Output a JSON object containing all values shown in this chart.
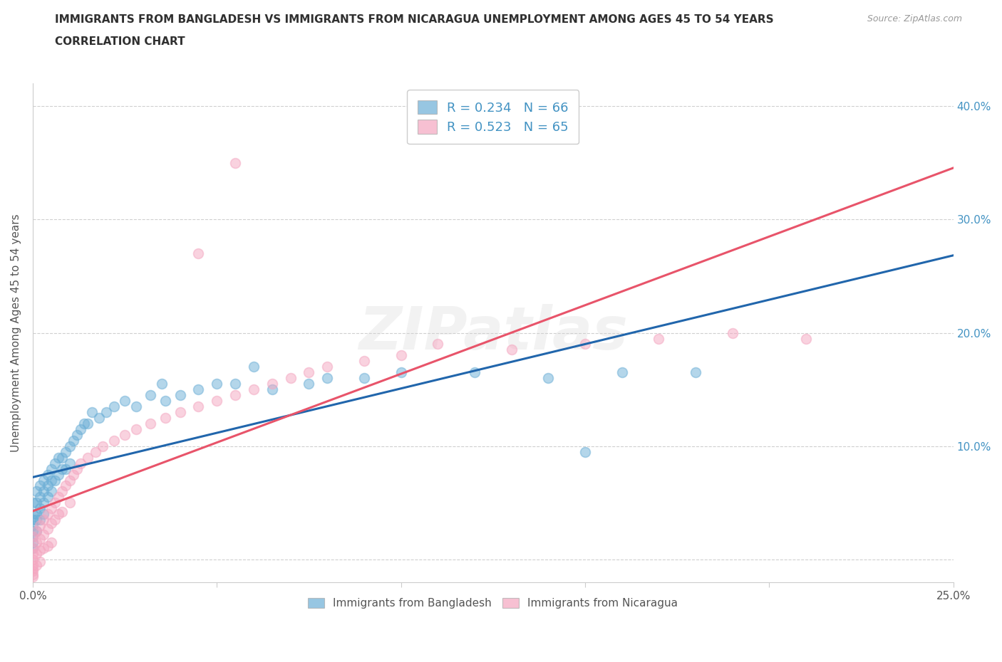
{
  "title_line1": "IMMIGRANTS FROM BANGLADESH VS IMMIGRANTS FROM NICARAGUA UNEMPLOYMENT AMONG AGES 45 TO 54 YEARS",
  "title_line2": "CORRELATION CHART",
  "source_text": "Source: ZipAtlas.com",
  "watermark": "ZIPatlas",
  "ylabel": "Unemployment Among Ages 45 to 54 years",
  "xlim": [
    0.0,
    0.25
  ],
  "ylim": [
    -0.02,
    0.42
  ],
  "xtick_positions": [
    0.0,
    0.05,
    0.1,
    0.15,
    0.2,
    0.25
  ],
  "xtick_labels": [
    "0.0%",
    "",
    "",
    "",
    "",
    "25.0%"
  ],
  "ytick_positions": [
    0.0,
    0.1,
    0.2,
    0.3,
    0.4
  ],
  "ytick_labels": [
    "",
    "10.0%",
    "20.0%",
    "30.0%",
    "40.0%"
  ],
  "legend_labels": [
    "Immigrants from Bangladesh",
    "Immigrants from Nicaragua"
  ],
  "R_bangladesh": 0.234,
  "N_bangladesh": 66,
  "R_nicaragua": 0.523,
  "N_nicaragua": 65,
  "blue_color": "#6baed6",
  "pink_color": "#f4a6c0",
  "blue_line_color": "#2166ac",
  "pink_line_color": "#e8546a",
  "title_color": "#303030",
  "grid_color": "#d0d0d0",
  "axis_color": "#cccccc",
  "rn_label_color": "#4393c3",
  "tick_label_color": "#555555",
  "bangladesh_x": [
    0.0,
    0.0,
    0.0,
    0.0,
    0.0,
    0.0,
    0.0,
    0.0,
    0.001,
    0.001,
    0.001,
    0.001,
    0.001,
    0.002,
    0.002,
    0.002,
    0.002,
    0.003,
    0.003,
    0.003,
    0.003,
    0.004,
    0.004,
    0.004,
    0.005,
    0.005,
    0.005,
    0.006,
    0.006,
    0.007,
    0.007,
    0.008,
    0.008,
    0.009,
    0.009,
    0.01,
    0.01,
    0.011,
    0.012,
    0.013,
    0.014,
    0.015,
    0.016,
    0.018,
    0.02,
    0.022,
    0.025,
    0.028,
    0.032,
    0.036,
    0.04,
    0.045,
    0.05,
    0.055,
    0.065,
    0.075,
    0.09,
    0.1,
    0.12,
    0.14,
    0.16,
    0.18,
    0.15,
    0.08,
    0.06,
    0.035
  ],
  "bangladesh_y": [
    0.05,
    0.04,
    0.035,
    0.03,
    0.025,
    0.02,
    0.015,
    0.01,
    0.06,
    0.05,
    0.04,
    0.035,
    0.025,
    0.065,
    0.055,
    0.045,
    0.035,
    0.07,
    0.06,
    0.05,
    0.04,
    0.075,
    0.065,
    0.055,
    0.08,
    0.07,
    0.06,
    0.085,
    0.07,
    0.09,
    0.075,
    0.09,
    0.08,
    0.095,
    0.08,
    0.1,
    0.085,
    0.105,
    0.11,
    0.115,
    0.12,
    0.12,
    0.13,
    0.125,
    0.13,
    0.135,
    0.14,
    0.135,
    0.145,
    0.14,
    0.145,
    0.15,
    0.155,
    0.155,
    0.15,
    0.155,
    0.16,
    0.165,
    0.165,
    0.16,
    0.165,
    0.165,
    0.095,
    0.16,
    0.17,
    0.155
  ],
  "nicaragua_x": [
    0.0,
    0.0,
    0.0,
    0.0,
    0.0,
    0.0,
    0.0,
    0.0,
    0.0,
    0.001,
    0.001,
    0.001,
    0.001,
    0.002,
    0.002,
    0.002,
    0.002,
    0.003,
    0.003,
    0.003,
    0.004,
    0.004,
    0.004,
    0.005,
    0.005,
    0.005,
    0.006,
    0.006,
    0.007,
    0.007,
    0.008,
    0.008,
    0.009,
    0.01,
    0.01,
    0.011,
    0.012,
    0.013,
    0.015,
    0.017,
    0.019,
    0.022,
    0.025,
    0.028,
    0.032,
    0.036,
    0.04,
    0.045,
    0.05,
    0.055,
    0.06,
    0.065,
    0.07,
    0.075,
    0.08,
    0.09,
    0.1,
    0.11,
    0.13,
    0.15,
    0.17,
    0.19,
    0.21,
    0.045,
    0.055
  ],
  "nicaragua_y": [
    0.02,
    0.01,
    0.005,
    0.0,
    -0.005,
    -0.008,
    -0.01,
    -0.013,
    -0.015,
    0.025,
    0.015,
    0.005,
    -0.005,
    0.03,
    0.018,
    0.008,
    -0.002,
    0.035,
    0.022,
    0.01,
    0.04,
    0.027,
    0.012,
    0.045,
    0.032,
    0.015,
    0.05,
    0.035,
    0.055,
    0.04,
    0.06,
    0.042,
    0.065,
    0.07,
    0.05,
    0.075,
    0.08,
    0.085,
    0.09,
    0.095,
    0.1,
    0.105,
    0.11,
    0.115,
    0.12,
    0.125,
    0.13,
    0.135,
    0.14,
    0.145,
    0.15,
    0.155,
    0.16,
    0.165,
    0.17,
    0.175,
    0.18,
    0.19,
    0.185,
    0.19,
    0.195,
    0.2,
    0.195,
    0.27,
    0.35
  ]
}
